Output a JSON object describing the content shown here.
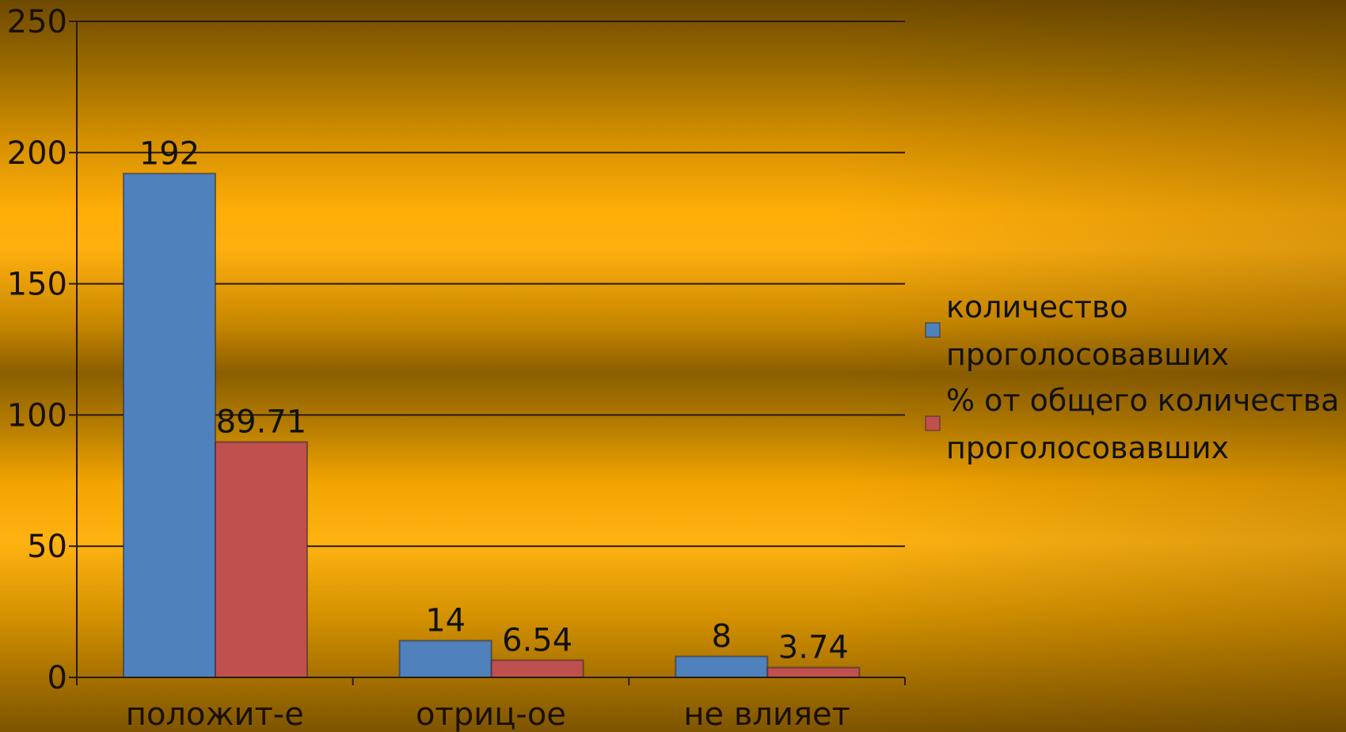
{
  "chart_data": {
    "type": "bar",
    "title": "",
    "categories": [
      "положит-е",
      "отриц-ое",
      "не влияет"
    ],
    "series": [
      {
        "name": "количество проголосовавших",
        "values": [
          192,
          14,
          8
        ],
        "color": "#4f81bd",
        "labels": [
          "192",
          "14",
          "8"
        ]
      },
      {
        "name": "% от общего количества проголосовавших",
        "values": [
          89.71,
          6.54,
          3.74
        ],
        "color": "#c0504d",
        "labels": [
          "89.71",
          "6.54",
          "3.74"
        ]
      }
    ],
    "ylim": [
      0,
      250
    ],
    "yticks": [
      0,
      50,
      100,
      150,
      200,
      250
    ],
    "xlabel": "",
    "ylabel": "",
    "grid": true,
    "legend_position": "right",
    "legend_lines": [
      [
        "количество",
        "проголосовавших"
      ],
      [
        "% от общего количества",
        "проголосовавших"
      ]
    ]
  }
}
